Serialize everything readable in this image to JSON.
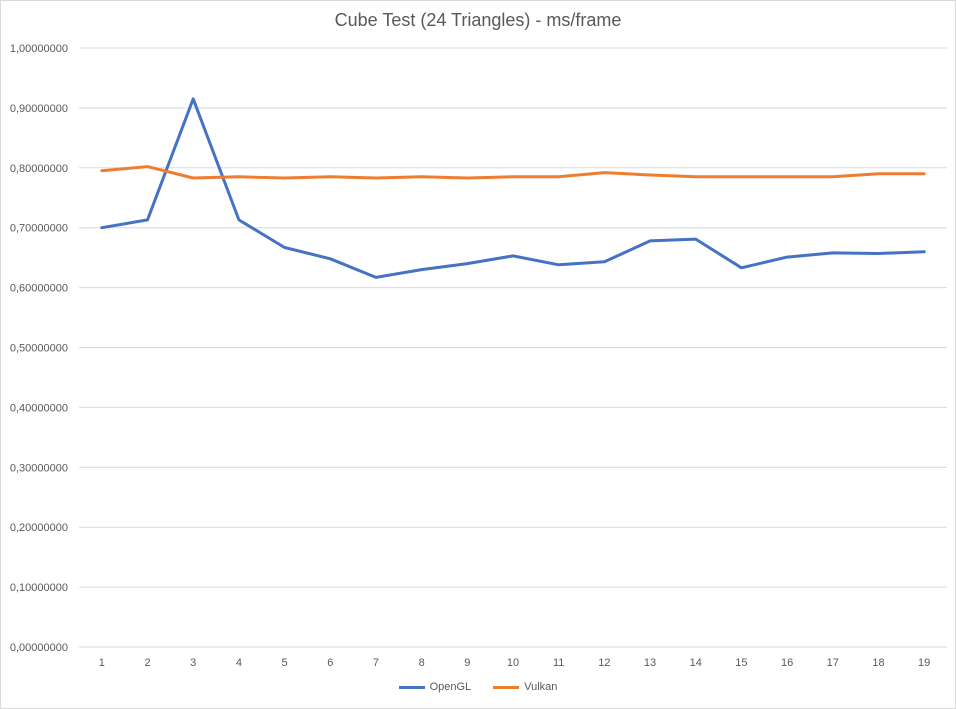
{
  "chart_data": {
    "type": "line",
    "title": "Cube Test (24 Triangles) - ms/frame",
    "xlabel": "",
    "ylabel": "",
    "categories": [
      "1",
      "2",
      "3",
      "4",
      "5",
      "6",
      "7",
      "8",
      "9",
      "10",
      "11",
      "12",
      "13",
      "14",
      "15",
      "16",
      "17",
      "18",
      "19"
    ],
    "ylim": [
      0,
      1
    ],
    "yticks": [
      {
        "value": 0.0,
        "label": "0,00000000"
      },
      {
        "value": 0.1,
        "label": "0,10000000"
      },
      {
        "value": 0.2,
        "label": "0,20000000"
      },
      {
        "value": 0.3,
        "label": "0,30000000"
      },
      {
        "value": 0.4,
        "label": "0,40000000"
      },
      {
        "value": 0.5,
        "label": "0,50000000"
      },
      {
        "value": 0.6,
        "label": "0,60000000"
      },
      {
        "value": 0.7,
        "label": "0,70000000"
      },
      {
        "value": 0.8,
        "label": "0,80000000"
      },
      {
        "value": 0.9,
        "label": "0,90000000"
      },
      {
        "value": 1.0,
        "label": "1,00000000"
      }
    ],
    "grid": true,
    "legend_position": "bottom",
    "series": [
      {
        "name": "OpenGL",
        "color": "#4472c4",
        "values": [
          0.7,
          0.713,
          0.915,
          0.713,
          0.667,
          0.648,
          0.617,
          0.63,
          0.64,
          0.653,
          0.638,
          0.643,
          0.678,
          0.681,
          0.633,
          0.651,
          0.658,
          0.657,
          0.66
        ]
      },
      {
        "name": "Vulkan",
        "color": "#ed7d31",
        "values": [
          0.795,
          0.802,
          0.783,
          0.785,
          0.783,
          0.785,
          0.783,
          0.785,
          0.783,
          0.785,
          0.785,
          0.792,
          0.788,
          0.785,
          0.785,
          0.785,
          0.785,
          0.79,
          0.79
        ]
      }
    ]
  }
}
